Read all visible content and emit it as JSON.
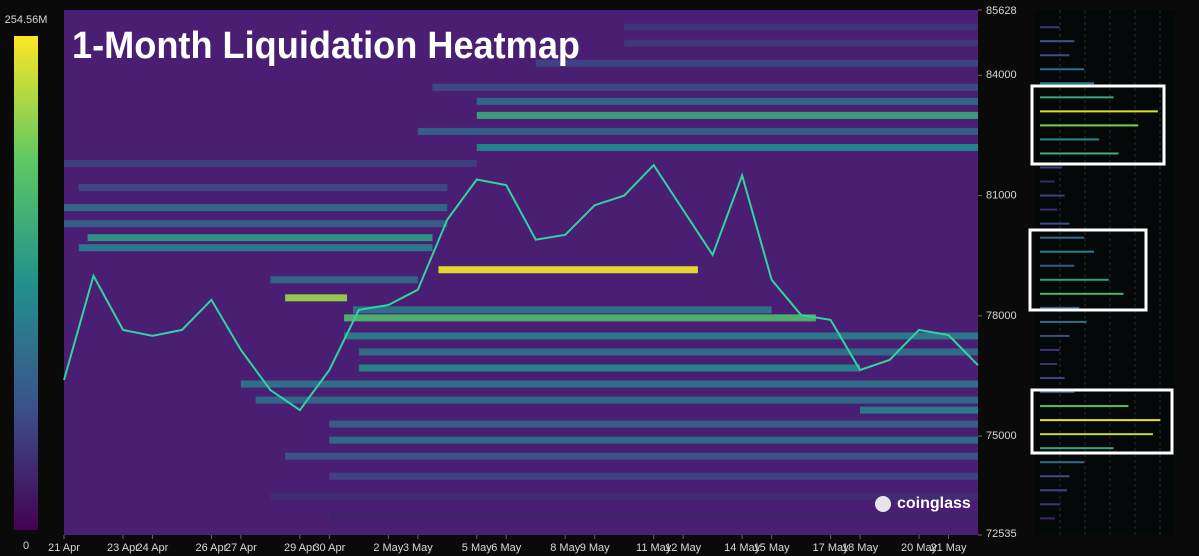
{
  "chart_data": {
    "type": "heatmap",
    "title": "1-Month Liquidation Heatmap",
    "watermark": "coinglass",
    "ylim": [
      72535,
      85628
    ],
    "yticks": [
      72535,
      75000,
      78000,
      81000,
      84000,
      85628
    ],
    "xlim": [
      0,
      31
    ],
    "xticks": [
      {
        "value": 0,
        "label": "21 Apr"
      },
      {
        "value": 2,
        "label": "23 Apr"
      },
      {
        "value": 3,
        "label": "24 Apr"
      },
      {
        "value": 5,
        "label": "26 Apr"
      },
      {
        "value": 6,
        "label": "27 Apr"
      },
      {
        "value": 8,
        "label": "29 Apr"
      },
      {
        "value": 9,
        "label": "30 Apr"
      },
      {
        "value": 11,
        "label": "2 May"
      },
      {
        "value": 12,
        "label": "3 May"
      },
      {
        "value": 14,
        "label": "5 May"
      },
      {
        "value": 15,
        "label": "6 May"
      },
      {
        "value": 17,
        "label": "8 May"
      },
      {
        "value": 18,
        "label": "9 May"
      },
      {
        "value": 20,
        "label": "11 May"
      },
      {
        "value": 21,
        "label": "12 May"
      },
      {
        "value": 23,
        "label": "14 May"
      },
      {
        "value": 24,
        "label": "15 May"
      },
      {
        "value": 26,
        "label": "17 May"
      },
      {
        "value": 27,
        "label": "18 May"
      },
      {
        "value": 29,
        "label": "20 May"
      },
      {
        "value": 30,
        "label": "21 May"
      }
    ],
    "clim": [
      0,
      254.56
    ],
    "cticks": [
      0,
      {
        "value": 254.56,
        "label": "254.56M"
      }
    ],
    "price": {
      "color": "#2fd4a0",
      "x": [
        0,
        1,
        2,
        3,
        4,
        5,
        6,
        7,
        8,
        9,
        10,
        11,
        12,
        13,
        14,
        15,
        16,
        17,
        18,
        19,
        20,
        21,
        22,
        23,
        24,
        25,
        26,
        27,
        28,
        29,
        30,
        31
      ],
      "values": [
        76400,
        79000,
        77650,
        77500,
        77650,
        78400,
        77150,
        76150,
        75650,
        76650,
        78150,
        78270,
        78650,
        80400,
        81400,
        81260,
        79900,
        80020,
        80760,
        81000,
        81760,
        80640,
        79520,
        81500,
        78900,
        78020,
        77900,
        76650,
        76900,
        77650,
        77520,
        76770
      ]
    },
    "bands": [
      {
        "price": 85200,
        "from": 19,
        "to": 31,
        "value": 40
      },
      {
        "price": 84800,
        "from": 19,
        "to": 31,
        "value": 45
      },
      {
        "price": 84300,
        "from": 16,
        "to": 31,
        "value": 55
      },
      {
        "price": 83700,
        "from": 12.5,
        "to": 31,
        "value": 60
      },
      {
        "price": 83350,
        "from": 14,
        "to": 31,
        "value": 90
      },
      {
        "price": 83000,
        "from": 14,
        "to": 31,
        "value": 150
      },
      {
        "price": 82600,
        "from": 12,
        "to": 31,
        "value": 80
      },
      {
        "price": 82200,
        "from": 14,
        "to": 31,
        "value": 120
      },
      {
        "price": 81800,
        "from": 0,
        "to": 14,
        "value": 50
      },
      {
        "price": 81200,
        "from": 0.5,
        "to": 13,
        "value": 60
      },
      {
        "price": 80700,
        "from": 0,
        "to": 13,
        "value": 90
      },
      {
        "price": 80300,
        "from": 0,
        "to": 13,
        "value": 80
      },
      {
        "price": 79950,
        "from": 0.8,
        "to": 12.5,
        "value": 140
      },
      {
        "price": 79700,
        "from": 0.5,
        "to": 12.5,
        "value": 110
      },
      {
        "price": 79150,
        "from": 12.7,
        "to": 21.5,
        "value": 250
      },
      {
        "price": 78900,
        "from": 7,
        "to": 12,
        "value": 90
      },
      {
        "price": 78450,
        "from": 7.5,
        "to": 9.6,
        "value": 215
      },
      {
        "price": 78150,
        "from": 9.8,
        "to": 24,
        "value": 100
      },
      {
        "price": 77950,
        "from": 9.5,
        "to": 25.5,
        "value": 175
      },
      {
        "price": 77500,
        "from": 9.5,
        "to": 31,
        "value": 110
      },
      {
        "price": 77100,
        "from": 10,
        "to": 31,
        "value": 95
      },
      {
        "price": 76700,
        "from": 10,
        "to": 27,
        "value": 120
      },
      {
        "price": 76300,
        "from": 6,
        "to": 31,
        "value": 100
      },
      {
        "price": 75900,
        "from": 6.5,
        "to": 31,
        "value": 90
      },
      {
        "price": 75650,
        "from": 27,
        "to": 31,
        "value": 110
      },
      {
        "price": 75300,
        "from": 9,
        "to": 31,
        "value": 80
      },
      {
        "price": 74900,
        "from": 9,
        "to": 31,
        "value": 95
      },
      {
        "price": 74500,
        "from": 7.5,
        "to": 31,
        "value": 70
      },
      {
        "price": 74000,
        "from": 9,
        "to": 31,
        "value": 55
      },
      {
        "price": 73500,
        "from": 7,
        "to": 31,
        "value": 35
      },
      {
        "price": 73000,
        "from": 9,
        "to": 31,
        "value": 25
      }
    ],
    "profile": {
      "levels": [
        85200,
        84850,
        84500,
        84150,
        83800,
        83450,
        83100,
        82750,
        82400,
        82050,
        81700,
        81350,
        81000,
        80650,
        80300,
        79950,
        79600,
        79250,
        78900,
        78550,
        78200,
        77850,
        77500,
        77150,
        76800,
        76450,
        76100,
        75750,
        75400,
        75050,
        74700,
        74350,
        74000,
        73650,
        73300,
        72950
      ],
      "values": [
        40,
        70,
        60,
        90,
        110,
        150,
        240,
        200,
        120,
        160,
        45,
        30,
        50,
        35,
        60,
        90,
        110,
        70,
        140,
        170,
        80,
        95,
        60,
        40,
        35,
        50,
        70,
        180,
        245,
        230,
        150,
        90,
        60,
        55,
        40,
        30
      ]
    }
  }
}
